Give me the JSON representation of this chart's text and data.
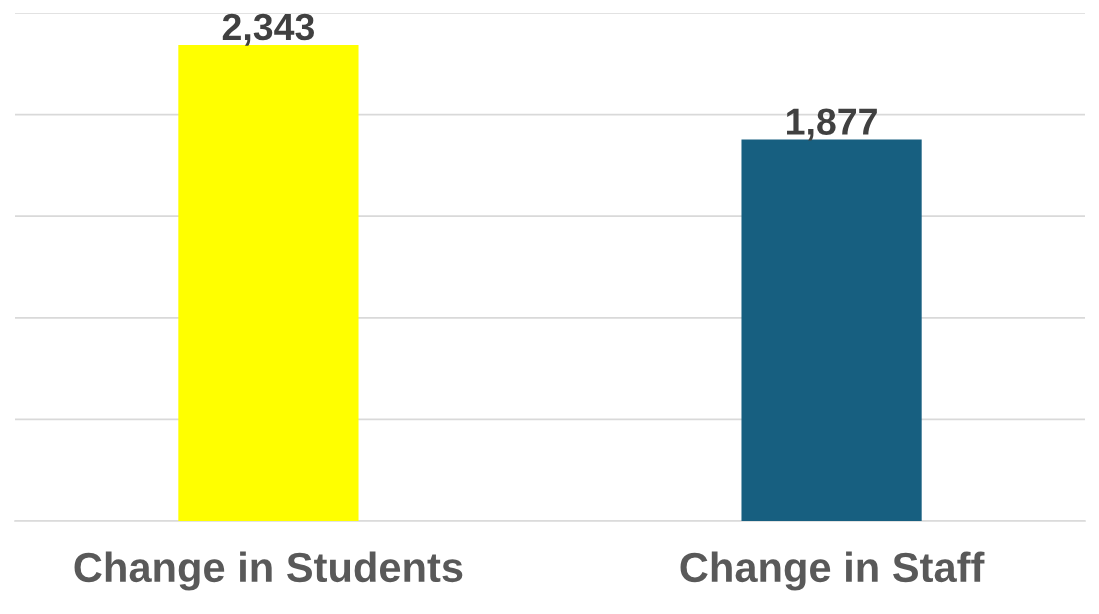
{
  "chart_data": {
    "type": "bar",
    "categories": [
      "Change in Students",
      "Change in Staff"
    ],
    "values": [
      2343,
      1877
    ],
    "colors": [
      "#ffff00",
      "#175f80"
    ],
    "value_labels": [
      "2,343",
      "1,877"
    ],
    "ylim": [
      0,
      2500
    ],
    "yticks": [
      {
        "value": 0,
        "label": null
      },
      {
        "value": 500,
        "label": null
      },
      {
        "value": 1000,
        "label": null
      },
      {
        "value": 1500,
        "label": null
      },
      {
        "value": 2000,
        "label": null
      },
      {
        "value": 2500,
        "label": null
      }
    ],
    "grid": "y",
    "tick_labels": "x"
  }
}
